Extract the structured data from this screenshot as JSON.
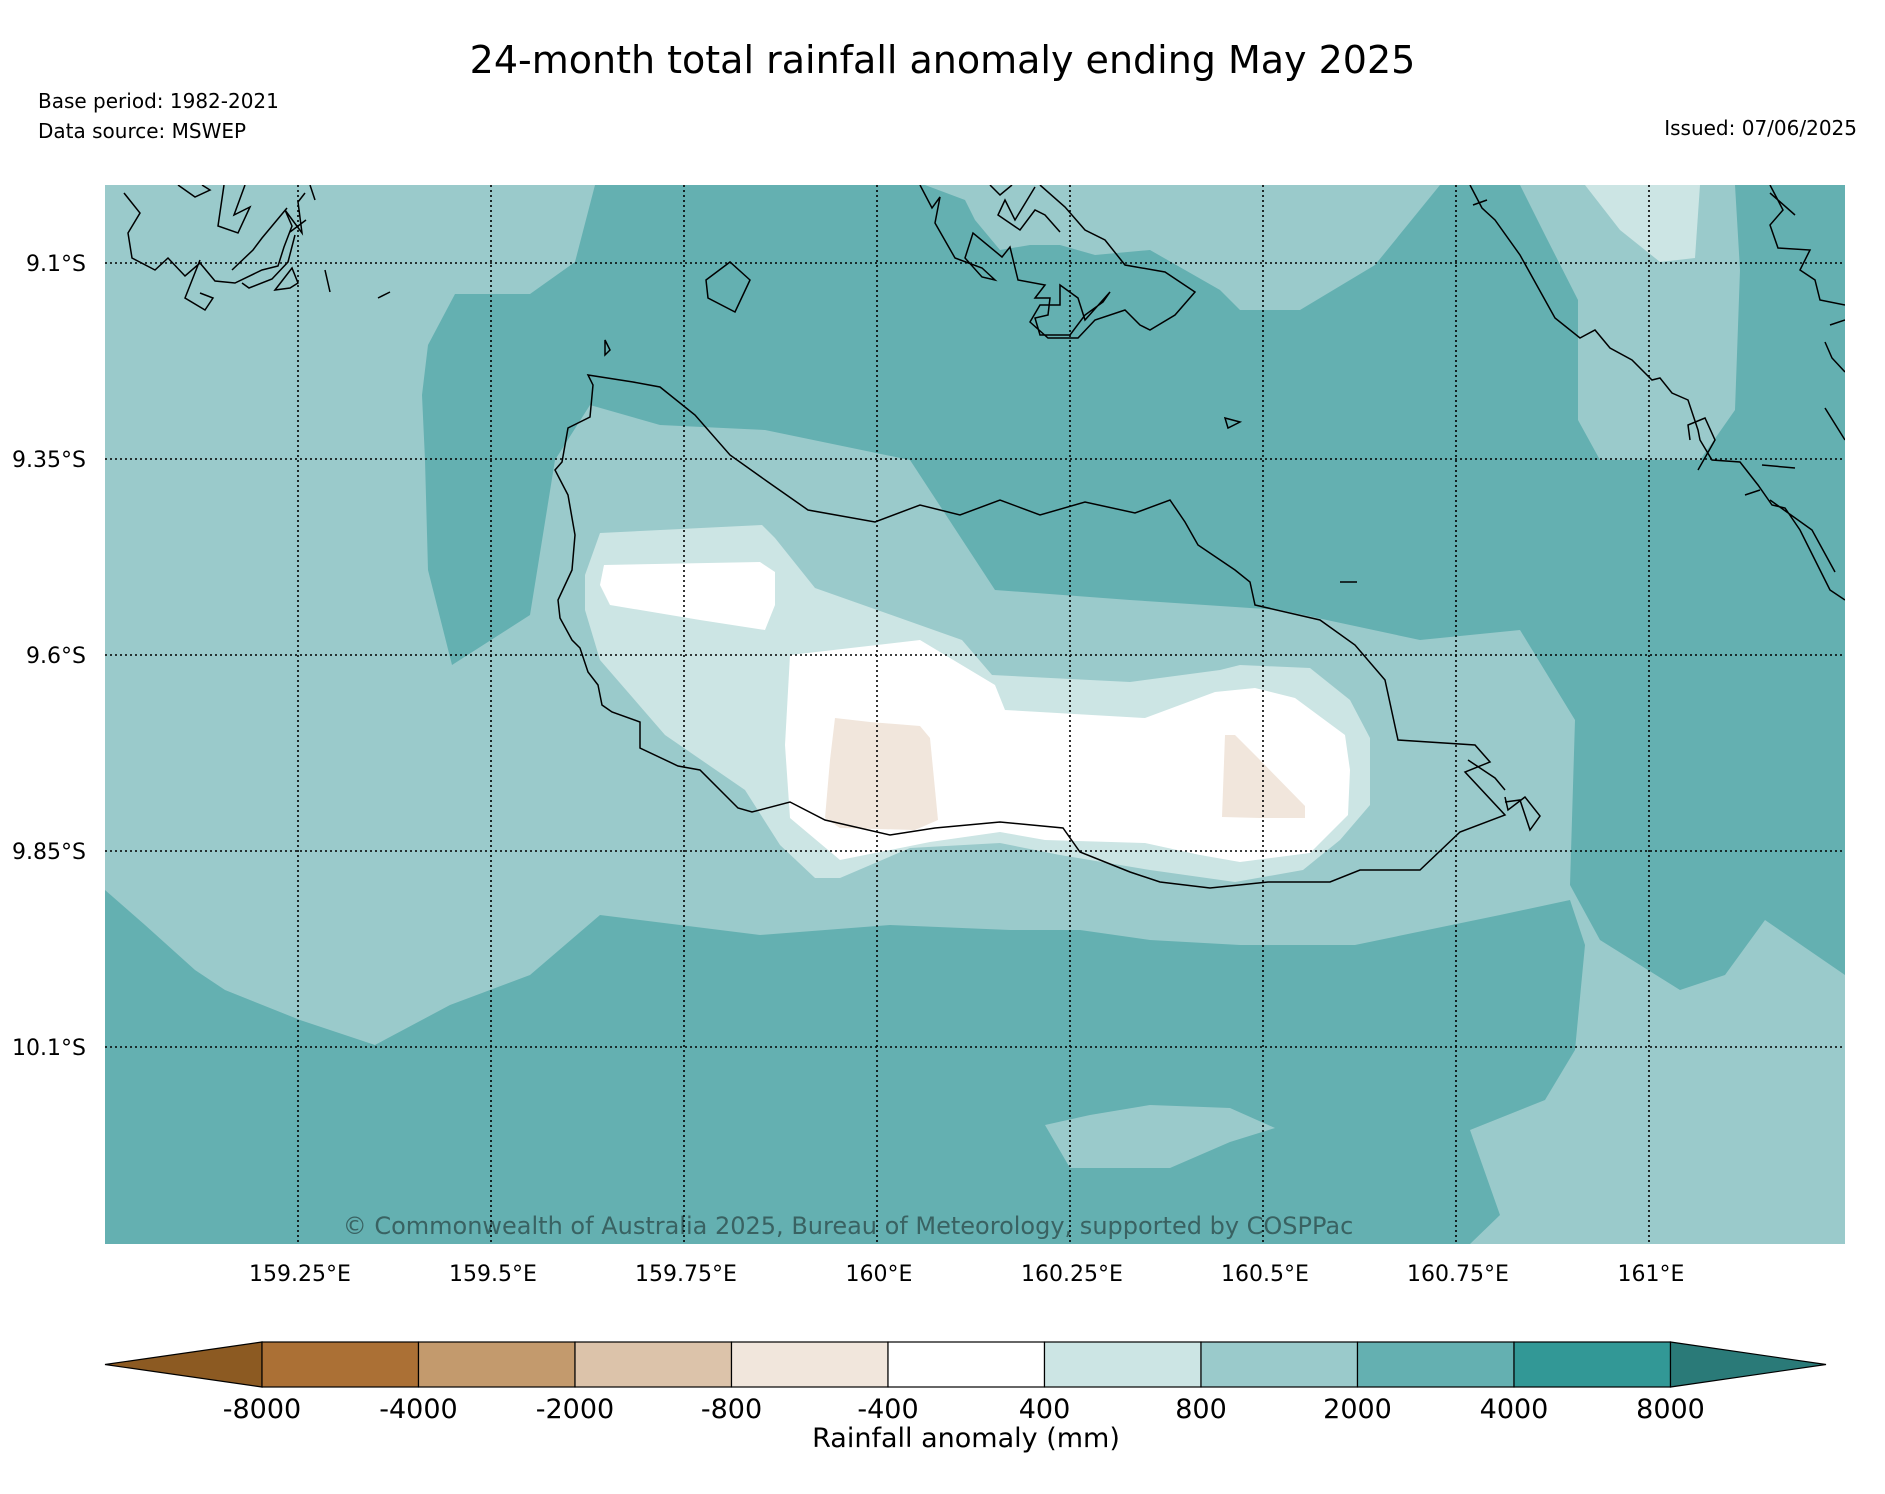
{
  "title": "24-month total rainfall anomaly ending May 2025",
  "base_period": "Base period: 1982-2021",
  "data_source": "Data source: MSWEP",
  "issued": "Issued: 07/06/2025",
  "copyright": "© Commonwealth of Australia 2025, Bureau of Meteorology, supported by COSPPac",
  "lat_labels": [
    "9.1°S",
    "9.35°S",
    "9.6°S",
    "9.85°S",
    "10.1°S"
  ],
  "lon_labels": [
    "159.25°E",
    "159.5°E",
    "159.75°E",
    "160°E",
    "160.25°E",
    "160.5°E",
    "160.75°E",
    "161°E"
  ],
  "colorbar": {
    "title": "Rainfall anomaly (mm)",
    "ticks": [
      "-8000",
      "-4000",
      "-2000",
      "-800",
      "-400",
      "400",
      "800",
      "2000",
      "4000",
      "8000"
    ],
    "colors": [
      "#8c5a22",
      "#ab7035",
      "#c39a6d",
      "#dcc3aa",
      "#f1e6dc",
      "#ffffff",
      "#cce5e4",
      "#9acacb",
      "#64b0b1",
      "#329896",
      "#2a7a78"
    ]
  }
}
